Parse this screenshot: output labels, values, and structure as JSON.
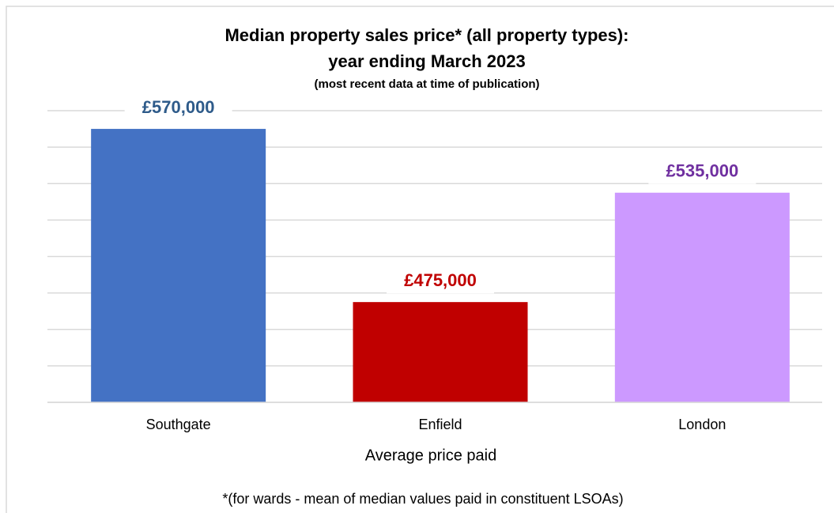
{
  "chart_data": {
    "type": "bar",
    "title": [
      "Median property sales price* (all property types):",
      "year ending March 2023"
    ],
    "subtitle": "(most recent data at time of publication)",
    "categories": [
      "Southgate",
      "Enfield",
      "London"
    ],
    "values": [
      570000,
      475000,
      535000
    ],
    "value_labels": [
      "£570,000",
      "£475,000",
      "£535,000"
    ],
    "colors": [
      "#4472c4",
      "#c00000",
      "#cc99ff"
    ],
    "label_colors": [
      "#2e5b8a",
      "#c00000",
      "#7030a0"
    ],
    "xlabel": "Average price paid",
    "footnote": "*(for wards - mean of median values paid in constituent LSOAs)",
    "ylim": [
      420000,
      580000
    ],
    "yticks": [
      420000,
      440000,
      460000,
      480000,
      500000,
      520000,
      540000,
      560000,
      580000
    ],
    "grid": true
  }
}
